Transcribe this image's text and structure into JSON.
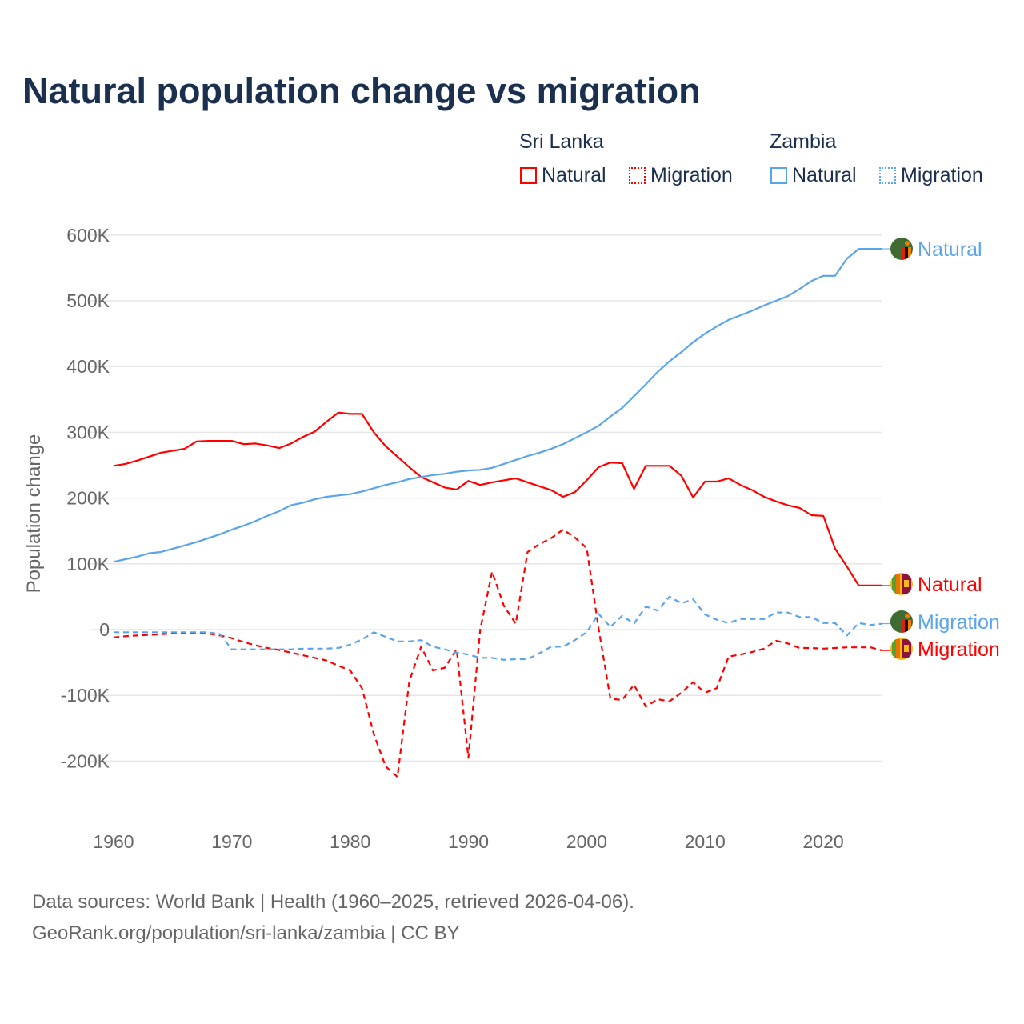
{
  "title": "Natural population change vs migration",
  "legend": {
    "groups": [
      {
        "name": "Sri Lanka",
        "color": "#ff0000",
        "items": [
          "Natural",
          "Migration"
        ]
      },
      {
        "name": "Zambia",
        "color": "#5aa5ea",
        "items": [
          "Natural",
          "Migration"
        ]
      }
    ]
  },
  "footer": {
    "line1": "Data sources: World Bank | Health (1960–2025, retrieved 2026-04-06).",
    "line2": "GeoRank.org/population/sri-lanka/zambia | CC BY"
  },
  "chart_data": {
    "type": "line",
    "title": "Natural population change vs migration",
    "xlabel": "",
    "ylabel": "Population change",
    "xlim": [
      1960,
      2025
    ],
    "ylim": [
      -250000,
      620000
    ],
    "yticks": [
      600000,
      500000,
      400000,
      300000,
      200000,
      100000,
      0,
      -100000,
      -200000
    ],
    "ytick_labels": [
      "600K",
      "500K",
      "400K",
      "300K",
      "200K",
      "100K",
      "0",
      "-100K",
      "-200K"
    ],
    "xticks": [
      1960,
      1970,
      1980,
      1990,
      2000,
      2010,
      2020
    ],
    "xtick_labels": [
      "1960",
      "1970",
      "1980",
      "1990",
      "2000",
      "2010",
      "2020"
    ],
    "grid": true,
    "legend_position": "top-right",
    "x_start": 1960,
    "unit": 1000,
    "series": [
      {
        "name": "Sri Lanka Natural",
        "end_label": "Natural",
        "color": "#ff0000",
        "dash": false,
        "flag": "sri-lanka",
        "values": [
          249,
          252,
          257,
          263,
          269,
          272,
          275,
          286,
          287,
          287,
          287,
          282,
          283,
          280,
          276,
          283,
          293,
          301,
          316,
          330,
          328,
          328,
          300,
          279,
          263,
          247,
          232,
          224,
          216,
          213,
          226,
          220,
          224,
          227,
          230,
          224,
          218,
          212,
          202,
          209,
          227,
          247,
          254,
          253,
          214,
          249,
          249,
          249,
          234,
          201,
          225,
          225,
          230,
          220,
          212,
          202,
          195,
          189,
          185,
          174,
          173,
          123,
          96,
          67,
          67,
          67
        ]
      },
      {
        "name": "Sri Lanka Migration",
        "end_label": "Migration",
        "color": "#ff0000",
        "dash": true,
        "flag": "sri-lanka",
        "values": [
          -12,
          -10,
          -9,
          -8,
          -7,
          -6,
          -6,
          -6,
          -6,
          -9,
          -13,
          -19,
          -24,
          -28,
          -31,
          -35,
          -39,
          -43,
          -47,
          -55,
          -62,
          -89,
          -159,
          -208,
          -224,
          -79,
          -26,
          -62,
          -58,
          -30,
          -195,
          0,
          88,
          36,
          9,
          118,
          130,
          139,
          152,
          140,
          124,
          2,
          -105,
          -107,
          -84,
          -117,
          -106,
          -109,
          -96,
          -80,
          -96,
          -89,
          -41,
          -38,
          -34,
          -29,
          -17,
          -21,
          -28,
          -28,
          -29,
          -28,
          -27,
          -27,
          -27,
          -32
        ]
      },
      {
        "name": "Zambia Natural",
        "end_label": "Natural",
        "color": "#5aa5ea",
        "dash": false,
        "flag": "zambia",
        "values": [
          103,
          107,
          111,
          116,
          118,
          123,
          128,
          133,
          139,
          145,
          152,
          158,
          165,
          173,
          180,
          189,
          193,
          198,
          202,
          204,
          206,
          210,
          215,
          220,
          224,
          229,
          232,
          235,
          237,
          240,
          242,
          243,
          246,
          252,
          258,
          264,
          269,
          275,
          282,
          291,
          300,
          310,
          324,
          337,
          355,
          373,
          392,
          408,
          422,
          437,
          450,
          461,
          471,
          478,
          485,
          493,
          500,
          507,
          518,
          530,
          538,
          538,
          564,
          579,
          579,
          579
        ]
      },
      {
        "name": "Zambia Migration",
        "end_label": "Migration",
        "color": "#5aa5ea",
        "dash": true,
        "flag": "zambia",
        "values": [
          -4,
          -4,
          -4,
          -4,
          -4,
          -4,
          -4,
          -4,
          -4,
          -7,
          -30,
          -30,
          -30,
          -30,
          -30,
          -30,
          -29,
          -29,
          -29,
          -28,
          -23,
          -15,
          -4,
          -11,
          -18,
          -18,
          -16,
          -26,
          -30,
          -35,
          -38,
          -43,
          -43,
          -46,
          -45,
          -45,
          -36,
          -26,
          -26,
          -16,
          -4,
          24,
          4,
          21,
          9,
          35,
          29,
          50,
          40,
          46,
          23,
          15,
          10,
          16,
          16,
          16,
          26,
          26,
          19,
          19,
          10,
          10,
          -9,
          10,
          7,
          9
        ]
      }
    ]
  }
}
